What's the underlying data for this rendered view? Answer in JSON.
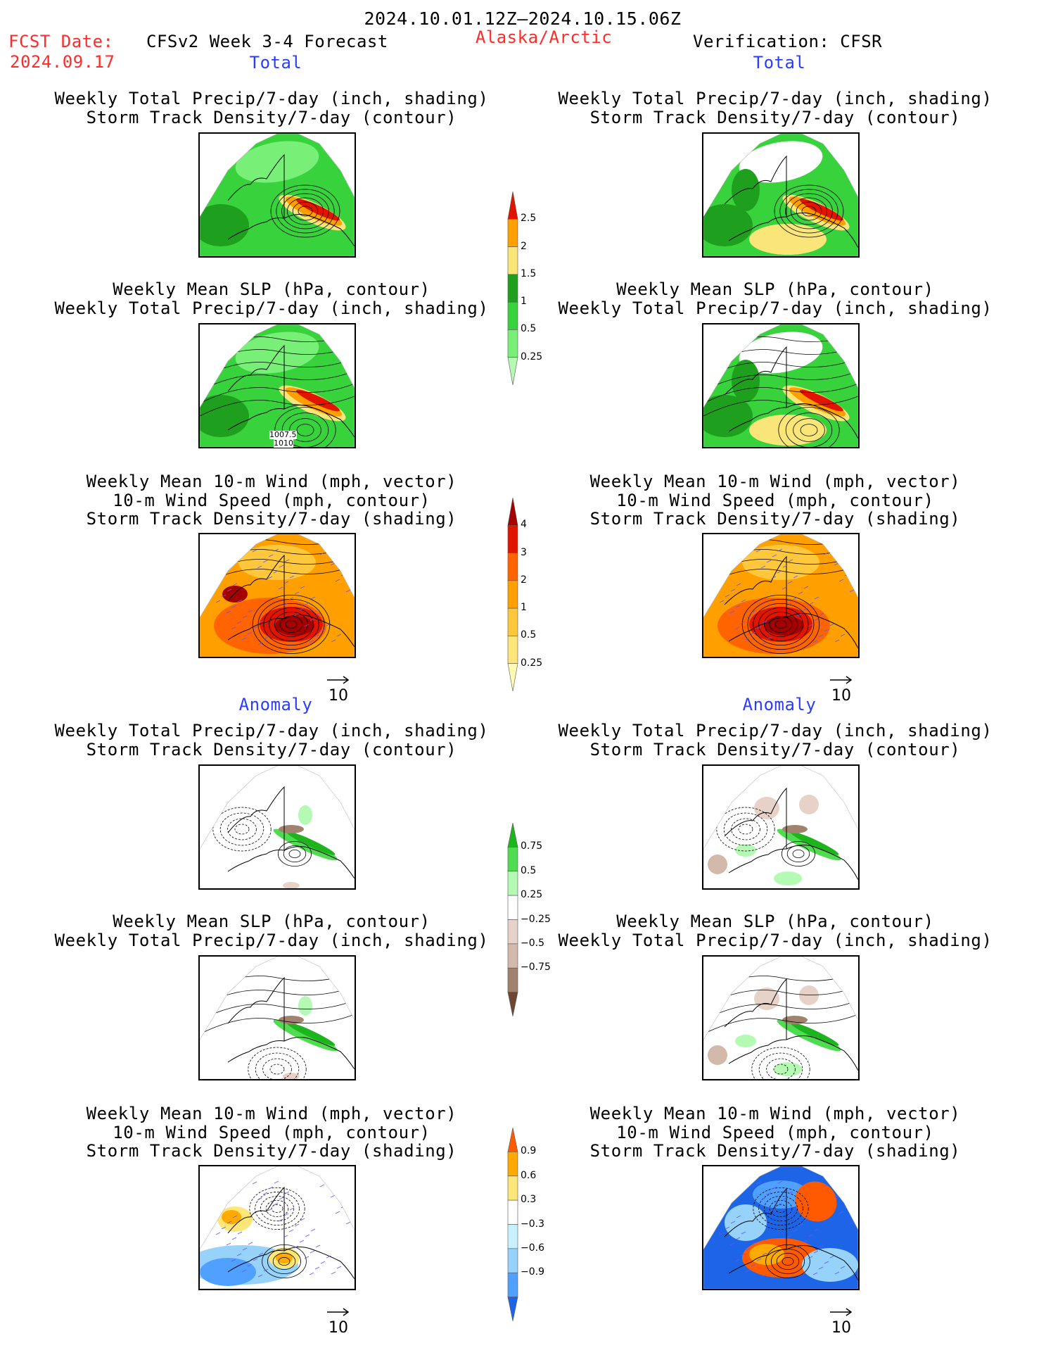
{
  "header": {
    "date_range": "2024.10.01.12Z–2024.10.15.06Z",
    "fcst_label": "FCST Date:",
    "fcst_date": "2024.09.17",
    "forecast_title": "CFSv2 Week 3-4 Forecast",
    "region": "Alaska/Arctic",
    "verification": "Verification: CFSR"
  },
  "section_labels": {
    "total": "Total",
    "anomaly": "Anomaly"
  },
  "titles": {
    "precip_storm": [
      "Weekly Total Precip/7-day (inch, shading)",
      "Storm Track Density/7-day (contour)"
    ],
    "slp_precip": [
      "Weekly Mean SLP (hPa, contour)",
      "Weekly Total Precip/7-day (inch, shading)"
    ],
    "wind_storm": [
      "Weekly Mean 10-m Wind (mph, vector)",
      "10-m Wind Speed (mph, contour)",
      "Storm Track Density/7-day (shading)"
    ]
  },
  "vector_reference": "10",
  "map_labels": {
    "slp_a": "1007.5",
    "slp_b": "1010"
  },
  "chart_data": [
    {
      "type": "heatmap",
      "name": "Total precip colorbar (inch)",
      "levels": [
        "0.25",
        "0.5",
        "1",
        "1.5",
        "2",
        "2.5"
      ],
      "colors": [
        "#b4fab4",
        "#78f078",
        "#37d23c",
        "#1ea01e",
        "#fae678",
        "#ffa000",
        "#e11400"
      ]
    },
    {
      "type": "heatmap",
      "name": "Total storm track density colorbar",
      "levels": [
        "0.25",
        "0.5",
        "1",
        "2",
        "3",
        "4"
      ],
      "colors": [
        "#fffab4",
        "#ffe678",
        "#ffc83c",
        "#ffa000",
        "#ff6400",
        "#e11400",
        "#a50000"
      ]
    },
    {
      "type": "heatmap",
      "name": "Precip anomaly colorbar (inch)",
      "levels": [
        "−0.75",
        "−0.5",
        "−0.25",
        "0.25",
        "0.5",
        "0.75"
      ],
      "colors": [
        "#6e4632",
        "#a0826e",
        "#d2b9aa",
        "#e6d2c8",
        "#ffffff",
        "#b4fab4",
        "#50dc50",
        "#1eb41e"
      ]
    },
    {
      "type": "heatmap",
      "name": "Storm track density anomaly colorbar",
      "levels": [
        "−0.9",
        "−0.6",
        "−0.3",
        "0.3",
        "0.6",
        "0.9"
      ],
      "colors": [
        "#1e64e6",
        "#50a0ff",
        "#96d2fa",
        "#c8f0ff",
        "#ffffff",
        "#ffe678",
        "#ffaa00",
        "#ff5a00"
      ]
    }
  ],
  "colors": {
    "title_red": "#ff2a2a",
    "label_blue": "#2a3cff"
  }
}
